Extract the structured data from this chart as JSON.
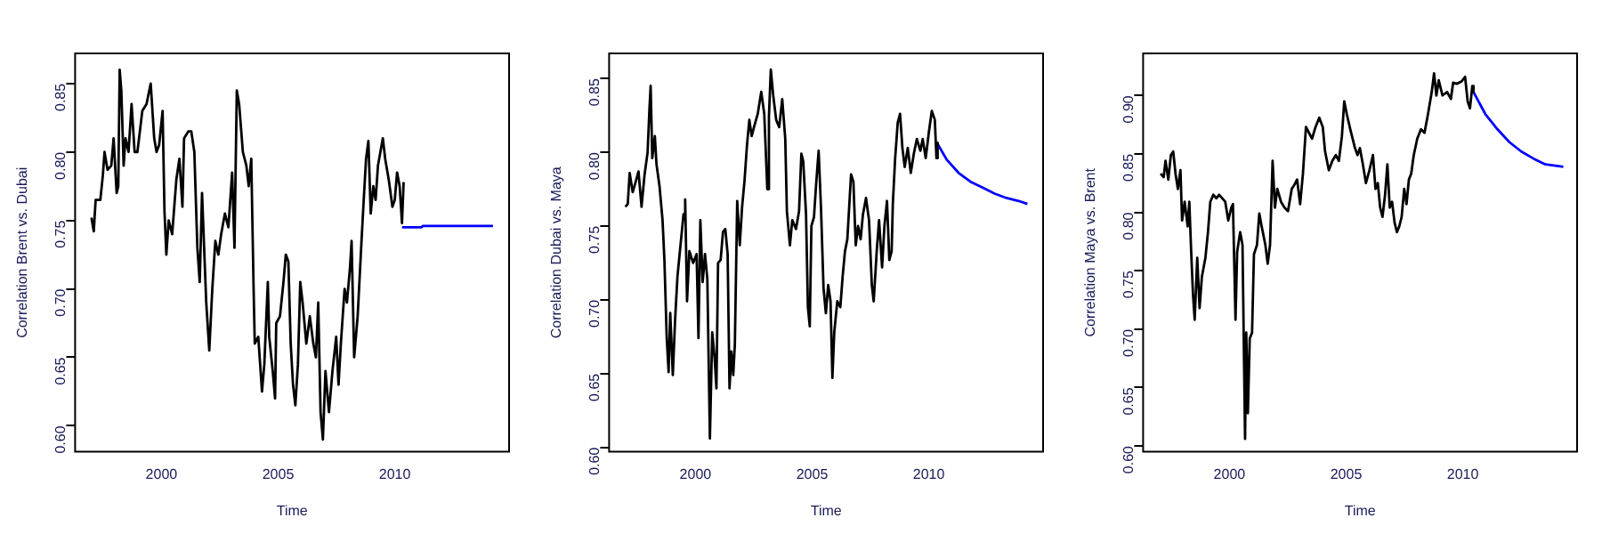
{
  "chart_data": [
    {
      "type": "line",
      "xlabel": "Time",
      "ylabel": "Correlation Brent vs. Dubai",
      "xlim": [
        1996.3,
        2014.9
      ],
      "xticks": [
        2000,
        2005,
        2010
      ],
      "ylim": [
        0.581,
        0.872
      ],
      "yticks": [
        {
          "value": 0.6,
          "label": "0.60"
        },
        {
          "value": 0.65,
          "label": "0.65"
        },
        {
          "value": 0.7,
          "label": "0.70"
        },
        {
          "value": 0.75,
          "label": "0.75"
        },
        {
          "value": 0.8,
          "label": "0.80"
        },
        {
          "value": 0.85,
          "label": "0.85"
        }
      ],
      "marker": "none",
      "series": [
        {
          "color": "#000000",
          "x": [
            1997.0,
            1997.1,
            1997.18,
            1997.38,
            1997.49,
            1997.56,
            1997.69,
            1997.85,
            1997.95,
            1998.08,
            1998.15,
            1998.21,
            1998.28,
            1998.38,
            1998.46,
            1998.59,
            1998.72,
            1998.85,
            1998.97,
            1999.18,
            1999.36,
            1999.54,
            1999.69,
            1999.79,
            1999.9,
            2000.05,
            2000.13,
            2000.21,
            2000.31,
            2000.46,
            2000.64,
            2000.77,
            2000.9,
            2000.97,
            2001.15,
            2001.28,
            2001.41,
            2001.54,
            2001.64,
            2001.74,
            2001.92,
            2002.05,
            2002.18,
            2002.31,
            2002.44,
            2002.56,
            2002.72,
            2002.87,
            2003.03,
            2003.13,
            2003.23,
            2003.33,
            2003.49,
            2003.64,
            2003.74,
            2003.85,
            2003.95,
            2004.0,
            2004.15,
            2004.31,
            2004.41,
            2004.56,
            2004.62,
            2004.77,
            2004.87,
            2004.92,
            2005.08,
            2005.23,
            2005.33,
            2005.44,
            2005.54,
            2005.64,
            2005.74,
            2005.85,
            2005.95,
            2006.05,
            2006.21,
            2006.36,
            2006.51,
            2006.62,
            2006.72,
            2006.82,
            2006.92,
            2007.03,
            2007.18,
            2007.33,
            2007.49,
            2007.59,
            2007.69,
            2007.85,
            2007.95,
            2008.08,
            2008.15,
            2008.26,
            2008.41,
            2008.56,
            2008.67,
            2008.77,
            2008.87,
            2008.97,
            2009.08,
            2009.18,
            2009.28,
            2009.49,
            2009.59,
            2009.74,
            2009.9,
            2010.0,
            2010.1,
            2010.21,
            2010.31,
            2010.38
          ],
          "values": [
            0.752,
            0.742,
            0.765,
            0.765,
            0.783,
            0.8,
            0.787,
            0.79,
            0.81,
            0.77,
            0.775,
            0.86,
            0.845,
            0.79,
            0.81,
            0.8,
            0.835,
            0.8,
            0.8,
            0.83,
            0.835,
            0.85,
            0.81,
            0.8,
            0.805,
            0.83,
            0.757,
            0.725,
            0.75,
            0.74,
            0.78,
            0.795,
            0.76,
            0.81,
            0.815,
            0.815,
            0.8,
            0.73,
            0.705,
            0.77,
            0.69,
            0.655,
            0.7,
            0.735,
            0.725,
            0.74,
            0.755,
            0.745,
            0.785,
            0.73,
            0.845,
            0.835,
            0.8,
            0.79,
            0.775,
            0.795,
            0.7,
            0.66,
            0.665,
            0.625,
            0.645,
            0.705,
            0.665,
            0.64,
            0.62,
            0.675,
            0.68,
            0.705,
            0.725,
            0.72,
            0.66,
            0.63,
            0.615,
            0.645,
            0.705,
            0.69,
            0.66,
            0.68,
            0.66,
            0.65,
            0.69,
            0.61,
            0.59,
            0.64,
            0.61,
            0.64,
            0.665,
            0.63,
            0.66,
            0.7,
            0.69,
            0.715,
            0.735,
            0.65,
            0.68,
            0.73,
            0.765,
            0.795,
            0.808,
            0.755,
            0.775,
            0.765,
            0.79,
            0.81,
            0.795,
            0.78,
            0.76,
            0.765,
            0.785,
            0.775,
            0.748,
            0.778
          ]
        },
        {
          "color": "#0000ff",
          "x": [
            2010.31,
            2011.15,
            2011.21,
            2014.21
          ],
          "values": [
            0.745,
            0.745,
            0.746,
            0.746
          ]
        }
      ]
    },
    {
      "type": "line",
      "xlabel": "Time",
      "ylabel": "Correlation Dubai vs. Maya",
      "xlim": [
        1996.3,
        2014.9
      ],
      "xticks": [
        2000,
        2005,
        2010
      ],
      "ylim": [
        0.597,
        0.867
      ],
      "yticks": [
        {
          "value": 0.6,
          "label": "0.60"
        },
        {
          "value": 0.65,
          "label": "0.65"
        },
        {
          "value": 0.7,
          "label": "0.70"
        },
        {
          "value": 0.75,
          "label": "0.75"
        },
        {
          "value": 0.8,
          "label": "0.80"
        },
        {
          "value": 0.85,
          "label": "0.85"
        }
      ],
      "marker": "none",
      "series": [
        {
          "color": "#000000",
          "x": [
            1997.0,
            1997.1,
            1997.18,
            1997.31,
            1997.44,
            1997.56,
            1997.69,
            1997.82,
            1997.95,
            1998.03,
            1998.08,
            1998.15,
            1998.26,
            1998.33,
            1998.46,
            1998.59,
            1998.67,
            1998.77,
            1998.85,
            1998.92,
            1999.03,
            1999.13,
            1999.23,
            1999.36,
            1999.49,
            1999.56,
            1999.64,
            1999.74,
            1999.9,
            2000.05,
            2000.13,
            2000.21,
            2000.31,
            2000.41,
            2000.51,
            2000.62,
            2000.72,
            2000.82,
            2000.9,
            2000.97,
            2001.08,
            2001.18,
            2001.28,
            2001.38,
            2001.46,
            2001.54,
            2001.62,
            2001.69,
            2001.79,
            2001.9,
            2002.0,
            2002.1,
            2002.21,
            2002.31,
            2002.41,
            2002.51,
            2002.67,
            2002.82,
            2002.95,
            2003.08,
            2003.15,
            2003.23,
            2003.33,
            2003.46,
            2003.59,
            2003.72,
            2003.85,
            2003.92,
            2004.05,
            2004.15,
            2004.31,
            2004.44,
            2004.54,
            2004.62,
            2004.74,
            2004.82,
            2004.9,
            2004.97,
            2005.08,
            2005.18,
            2005.28,
            2005.38,
            2005.49,
            2005.59,
            2005.69,
            2005.79,
            2005.87,
            2005.95,
            2006.08,
            2006.21,
            2006.31,
            2006.41,
            2006.51,
            2006.67,
            2006.77,
            2006.87,
            2006.97,
            2007.08,
            2007.18,
            2007.31,
            2007.44,
            2007.56,
            2007.64,
            2007.77,
            2007.87,
            2008.0,
            2008.1,
            2008.21,
            2008.31,
            2008.41,
            2008.46,
            2008.56,
            2008.67,
            2008.77,
            2008.87,
            2008.97,
            2009.1,
            2009.23,
            2009.36,
            2009.49,
            2009.64,
            2009.74,
            2009.87,
            2010.0,
            2010.13,
            2010.26,
            2010.33,
            2010.38
          ],
          "values": [
            0.763,
            0.765,
            0.786,
            0.773,
            0.78,
            0.787,
            0.763,
            0.785,
            0.8,
            0.83,
            0.845,
            0.796,
            0.811,
            0.792,
            0.777,
            0.754,
            0.727,
            0.674,
            0.651,
            0.691,
            0.649,
            0.687,
            0.716,
            0.737,
            0.758,
            0.768,
            0.699,
            0.733,
            0.725,
            0.731,
            0.674,
            0.754,
            0.712,
            0.731,
            0.714,
            0.606,
            0.678,
            0.661,
            0.64,
            0.725,
            0.727,
            0.746,
            0.748,
            0.731,
            0.64,
            0.665,
            0.649,
            0.67,
            0.767,
            0.737,
            0.763,
            0.78,
            0.805,
            0.822,
            0.811,
            0.817,
            0.826,
            0.841,
            0.826,
            0.775,
            0.824,
            0.856,
            0.839,
            0.822,
            0.817,
            0.836,
            0.809,
            0.76,
            0.737,
            0.754,
            0.748,
            0.76,
            0.799,
            0.794,
            0.758,
            0.695,
            0.682,
            0.75,
            0.756,
            0.78,
            0.801,
            0.763,
            0.708,
            0.691,
            0.71,
            0.699,
            0.647,
            0.678,
            0.699,
            0.695,
            0.716,
            0.733,
            0.741,
            0.785,
            0.78,
            0.737,
            0.75,
            0.741,
            0.758,
            0.769,
            0.754,
            0.71,
            0.699,
            0.733,
            0.754,
            0.722,
            0.75,
            0.767,
            0.727,
            0.733,
            0.765,
            0.796,
            0.82,
            0.826,
            0.803,
            0.79,
            0.803,
            0.786,
            0.799,
            0.809,
            0.801,
            0.809,
            0.796,
            0.813,
            0.828,
            0.822,
            0.796,
            0.807
          ]
        },
        {
          "color": "#0000ff",
          "x": [
            2010.33,
            2010.77,
            2011.28,
            2011.79,
            2012.31,
            2012.82,
            2013.33,
            2013.85,
            2014.23
          ],
          "values": [
            0.807,
            0.795,
            0.786,
            0.78,
            0.776,
            0.772,
            0.769,
            0.767,
            0.765
          ]
        }
      ]
    },
    {
      "type": "line",
      "xlabel": "Time",
      "ylabel": "Correlation Maya vs. Brent",
      "xlim": [
        1996.3,
        2014.9
      ],
      "xticks": [
        2000,
        2005,
        2010
      ],
      "ylim": [
        0.595,
        0.936
      ],
      "yticks": [
        {
          "value": 0.6,
          "label": "0.60"
        },
        {
          "value": 0.65,
          "label": "0.65"
        },
        {
          "value": 0.7,
          "label": "0.70"
        },
        {
          "value": 0.75,
          "label": "0.75"
        },
        {
          "value": 0.8,
          "label": "0.80"
        },
        {
          "value": 0.85,
          "label": "0.85"
        },
        {
          "value": 0.9,
          "label": "0.90"
        }
      ],
      "marker": "none",
      "series": [
        {
          "color": "#000000",
          "x": [
            1997.05,
            1997.18,
            1997.26,
            1997.38,
            1997.49,
            1997.59,
            1997.69,
            1997.79,
            1997.9,
            1997.97,
            1998.08,
            1998.21,
            1998.28,
            1998.36,
            1998.44,
            1998.51,
            1998.62,
            1998.72,
            1998.82,
            1998.97,
            1999.08,
            1999.18,
            1999.31,
            1999.44,
            1999.56,
            1999.82,
            1999.95,
            2000.08,
            2000.15,
            2000.26,
            2000.33,
            2000.46,
            2000.56,
            2000.67,
            2000.72,
            2000.79,
            2000.87,
            2000.97,
            2001.05,
            2001.18,
            2001.28,
            2001.38,
            2001.54,
            2001.64,
            2001.74,
            2001.85,
            2001.95,
            2002.05,
            2002.21,
            2002.36,
            2002.51,
            2002.67,
            2002.77,
            2002.9,
            2003.03,
            2003.15,
            2003.28,
            2003.41,
            2003.54,
            2003.69,
            2003.85,
            2004.0,
            2004.1,
            2004.26,
            2004.41,
            2004.56,
            2004.69,
            2004.82,
            2004.92,
            2005.03,
            2005.18,
            2005.28,
            2005.38,
            2005.49,
            2005.59,
            2005.72,
            2005.85,
            2006.0,
            2006.15,
            2006.26,
            2006.36,
            2006.46,
            2006.56,
            2006.67,
            2006.77,
            2006.87,
            2006.97,
            2007.08,
            2007.18,
            2007.28,
            2007.38,
            2007.49,
            2007.59,
            2007.69,
            2007.79,
            2007.9,
            2008.05,
            2008.21,
            2008.36,
            2008.51,
            2008.67,
            2008.77,
            2008.87,
            2008.97,
            2009.13,
            2009.33,
            2009.49,
            2009.59,
            2009.74,
            2009.95,
            2010.1,
            2010.21,
            2010.31,
            2010.41,
            2010.46
          ],
          "values": [
            0.833,
            0.83,
            0.844,
            0.828,
            0.849,
            0.852,
            0.833,
            0.82,
            0.836,
            0.793,
            0.809,
            0.788,
            0.809,
            0.766,
            0.729,
            0.708,
            0.761,
            0.718,
            0.745,
            0.761,
            0.783,
            0.809,
            0.815,
            0.812,
            0.815,
            0.809,
            0.793,
            0.804,
            0.807,
            0.708,
            0.766,
            0.783,
            0.772,
            0.606,
            0.697,
            0.628,
            0.692,
            0.697,
            0.764,
            0.772,
            0.799,
            0.788,
            0.772,
            0.756,
            0.772,
            0.844,
            0.804,
            0.82,
            0.809,
            0.804,
            0.801,
            0.82,
            0.823,
            0.828,
            0.807,
            0.833,
            0.873,
            0.868,
            0.863,
            0.873,
            0.881,
            0.873,
            0.852,
            0.836,
            0.844,
            0.849,
            0.844,
            0.865,
            0.895,
            0.884,
            0.871,
            0.863,
            0.855,
            0.849,
            0.855,
            0.841,
            0.825,
            0.836,
            0.849,
            0.82,
            0.825,
            0.804,
            0.796,
            0.815,
            0.841,
            0.804,
            0.809,
            0.791,
            0.783,
            0.788,
            0.796,
            0.82,
            0.807,
            0.828,
            0.833,
            0.849,
            0.863,
            0.871,
            0.868,
            0.884,
            0.903,
            0.919,
            0.9,
            0.913,
            0.9,
            0.903,
            0.897,
            0.911,
            0.91,
            0.912,
            0.916,
            0.895,
            0.889,
            0.908,
            0.903
          ]
        },
        {
          "color": "#0000ff",
          "x": [
            2010.46,
            2010.97,
            2011.49,
            2012.0,
            2012.51,
            2013.03,
            2013.54,
            2014.31
          ],
          "values": [
            0.903,
            0.884,
            0.871,
            0.86,
            0.852,
            0.846,
            0.841,
            0.839
          ]
        }
      ]
    }
  ]
}
